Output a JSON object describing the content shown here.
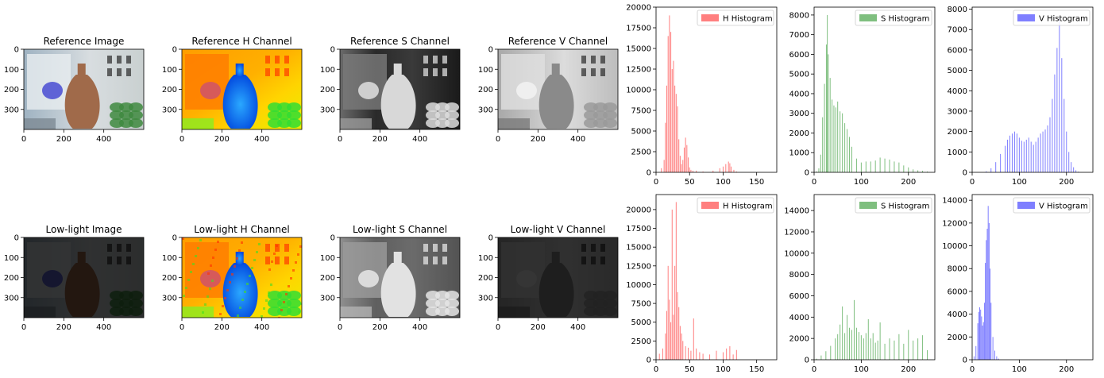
{
  "figure": {
    "image_panels": [
      {
        "id": "ref-image",
        "title": "Reference Image",
        "variant": "color",
        "light": "ref"
      },
      {
        "id": "ref-h",
        "title": "Reference H Channel",
        "variant": "hue",
        "light": "ref"
      },
      {
        "id": "ref-s",
        "title": "Reference S Channel",
        "variant": "sat",
        "light": "ref"
      },
      {
        "id": "ref-v",
        "title": "Reference V Channel",
        "variant": "val",
        "light": "ref"
      },
      {
        "id": "low-image",
        "title": "Low-light Image",
        "variant": "color",
        "light": "low"
      },
      {
        "id": "low-h",
        "title": "Low-light H Channel",
        "variant": "hue",
        "light": "low"
      },
      {
        "id": "low-s",
        "title": "Low-light S Channel",
        "variant": "sat",
        "light": "low"
      },
      {
        "id": "low-v",
        "title": "Low-light V Channel",
        "variant": "val",
        "light": "low"
      }
    ],
    "image_axes": {
      "xticks": [
        "0",
        "200",
        "400"
      ],
      "yticks": [
        "0",
        "100",
        "200",
        "300"
      ]
    }
  },
  "chart_data": [
    {
      "type": "bar",
      "id": "ref-h-hist",
      "legend": "H Histogram",
      "legend_loc": "top-right",
      "color": "#ff0000",
      "alpha": 0.5,
      "xlim": [
        0,
        180
      ],
      "ylim": [
        0,
        20000
      ],
      "xticks": [
        0,
        50,
        100,
        150
      ],
      "yticks": [
        0,
        2500,
        5000,
        7500,
        10000,
        12500,
        15000,
        17500,
        20000
      ],
      "x": [
        8,
        12,
        14,
        16,
        18,
        20,
        22,
        24,
        26,
        28,
        30,
        32,
        34,
        36,
        38,
        40,
        42,
        44,
        46,
        48,
        50,
        52,
        55,
        60,
        70,
        85,
        95,
        100,
        104,
        108,
        110,
        112,
        116,
        120
      ],
      "values": [
        500,
        1500,
        6000,
        10500,
        16500,
        19000,
        17000,
        12500,
        13500,
        10500,
        9500,
        8000,
        4000,
        2000,
        1000,
        1500,
        3000,
        4200,
        3300,
        1800,
        600,
        300,
        200,
        200,
        100,
        200,
        500,
        700,
        1000,
        1300,
        1100,
        700,
        300,
        100
      ]
    },
    {
      "type": "bar",
      "id": "ref-s-hist",
      "legend": "S Histogram",
      "legend_loc": "top-right",
      "color": "#008000",
      "alpha": 0.5,
      "xlim": [
        0,
        256
      ],
      "ylim": [
        0,
        8400
      ],
      "xticks": [
        0,
        100,
        200
      ],
      "yticks": [
        0,
        1000,
        2000,
        3000,
        4000,
        5000,
        6000,
        7000,
        8000
      ],
      "x": [
        5,
        10,
        14,
        18,
        22,
        26,
        28,
        30,
        34,
        38,
        42,
        46,
        50,
        55,
        60,
        65,
        70,
        75,
        80,
        90,
        100,
        110,
        120,
        130,
        140,
        150,
        160,
        170,
        180,
        190,
        200,
        210,
        220,
        230,
        240
      ],
      "values": [
        50,
        200,
        900,
        2800,
        4500,
        6500,
        8000,
        6000,
        4800,
        3700,
        3400,
        3300,
        3600,
        3100,
        3000,
        2500,
        2200,
        1800,
        1300,
        700,
        500,
        550,
        550,
        600,
        750,
        700,
        650,
        550,
        500,
        350,
        250,
        150,
        100,
        80,
        40
      ]
    },
    {
      "type": "bar",
      "id": "ref-v-hist",
      "legend": "V Histogram",
      "legend_loc": "top-right",
      "color": "#0000ff",
      "alpha": 0.5,
      "xlim": [
        0,
        256
      ],
      "ylim": [
        0,
        8100
      ],
      "xticks": [
        0,
        100,
        200
      ],
      "yticks": [
        0,
        1000,
        2000,
        3000,
        4000,
        5000,
        6000,
        7000,
        8000
      ],
      "x": [
        30,
        40,
        50,
        60,
        70,
        75,
        80,
        85,
        90,
        95,
        100,
        105,
        110,
        115,
        120,
        125,
        130,
        135,
        140,
        145,
        150,
        155,
        160,
        165,
        170,
        175,
        180,
        185,
        190,
        195,
        200,
        205,
        210,
        215,
        220,
        225
      ],
      "values": [
        50,
        200,
        500,
        900,
        1300,
        1600,
        1800,
        1900,
        2000,
        1900,
        1700,
        1550,
        1500,
        1600,
        1700,
        1500,
        1350,
        1500,
        1700,
        1900,
        2000,
        2100,
        2300,
        2700,
        3600,
        4800,
        6100,
        7600,
        5600,
        3600,
        2000,
        1000,
        500,
        250,
        100,
        30
      ]
    },
    {
      "type": "bar",
      "id": "low-h-hist",
      "legend": "H Histogram",
      "legend_loc": "top-right",
      "color": "#ff0000",
      "alpha": 0.5,
      "xlim": [
        0,
        180
      ],
      "ylim": [
        0,
        22000
      ],
      "xticks": [
        0,
        50,
        100,
        150
      ],
      "yticks": [
        0,
        2500,
        5000,
        7500,
        10000,
        12500,
        15000,
        17500,
        20000
      ],
      "x": [
        5,
        10,
        14,
        16,
        18,
        20,
        22,
        24,
        26,
        28,
        30,
        32,
        34,
        36,
        38,
        40,
        44,
        48,
        52,
        56,
        60,
        65,
        70,
        80,
        90,
        100,
        105,
        110,
        115,
        120
      ],
      "values": [
        800,
        1500,
        3500,
        6500,
        12500,
        8000,
        5000,
        20000,
        6000,
        12500,
        21000,
        9000,
        7000,
        4500,
        3500,
        2500,
        1800,
        1600,
        1200,
        5500,
        1500,
        1000,
        800,
        700,
        1200,
        1000,
        1500,
        1800,
        700,
        1300
      ]
    },
    {
      "type": "bar",
      "id": "low-s-hist",
      "legend": "S Histogram",
      "legend_loc": "top-right",
      "color": "#008000",
      "alpha": 0.5,
      "xlim": [
        0,
        256
      ],
      "ylim": [
        0,
        15500
      ],
      "xticks": [
        0,
        100,
        200
      ],
      "yticks": [
        0,
        2000,
        4000,
        6000,
        8000,
        10000,
        12000,
        14000
      ],
      "x": [
        5,
        15,
        25,
        35,
        45,
        50,
        55,
        60,
        65,
        70,
        75,
        80,
        85,
        90,
        95,
        100,
        105,
        110,
        115,
        120,
        125,
        130,
        135,
        140,
        150,
        160,
        170,
        180,
        190,
        200,
        210,
        220,
        230,
        240
      ],
      "values": [
        100,
        400,
        800,
        1300,
        2000,
        2400,
        3300,
        5000,
        2500,
        4200,
        3000,
        2800,
        5600,
        3000,
        2600,
        2300,
        2000,
        2500,
        3800,
        2000,
        2500,
        1600,
        1800,
        3500,
        1500,
        2000,
        1800,
        2400,
        1500,
        2800,
        1800,
        2000,
        2300,
        900
      ]
    },
    {
      "type": "bar",
      "id": "low-v-hist",
      "legend": "V Histogram",
      "legend_loc": "top-right",
      "color": "#0000ff",
      "alpha": 0.5,
      "xlim": [
        0,
        256
      ],
      "ylim": [
        0,
        14500
      ],
      "xticks": [
        0,
        100,
        200
      ],
      "yticks": [
        0,
        2000,
        4000,
        6000,
        8000,
        10000,
        12000,
        14000
      ],
      "x": [
        4,
        8,
        12,
        14,
        16,
        18,
        20,
        22,
        24,
        26,
        28,
        30,
        32,
        34,
        36,
        38,
        40,
        44,
        48,
        52,
        56
      ],
      "values": [
        300,
        1200,
        3200,
        4200,
        4600,
        4400,
        3800,
        3000,
        3300,
        5000,
        8500,
        10500,
        11500,
        13500,
        12000,
        8000,
        5000,
        2000,
        800,
        300,
        100
      ]
    }
  ]
}
